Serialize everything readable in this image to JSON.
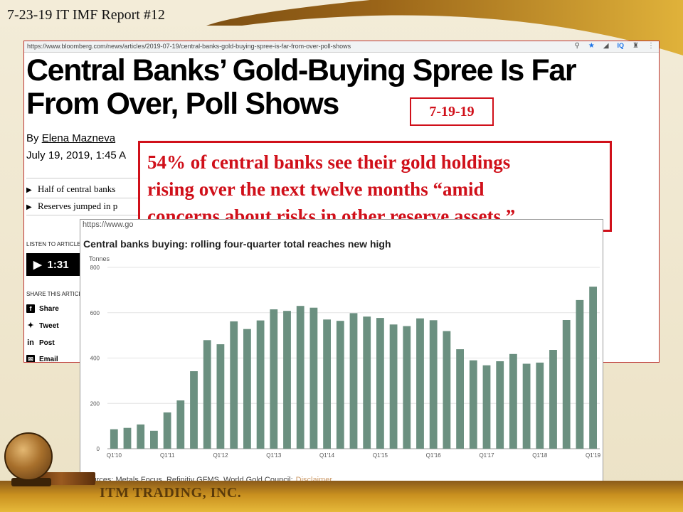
{
  "slide": {
    "title": "7-23-19 IT IMF Report #12",
    "footer_brand": "ITM TRADING, INC."
  },
  "article": {
    "url": "https://www.bloomberg.com/news/articles/2019-07-19/central-banks-gold-buying-spree-is-far-from-over-poll-shows",
    "headline_line1": "Central Banks’ Gold-Buying Spree Is Far",
    "headline_line2": "From Over, Poll Shows",
    "byline_prefix": "By",
    "author": "Elena Mazneva",
    "date": "July 19, 2019, 1:45 A",
    "bullets": [
      "Half of central banks",
      "Reserves jumped in p"
    ],
    "listen_label": "LISTEN TO ARTICLE",
    "audio_duration": "1:31",
    "share_label": "SHARE THIS ARTICLE",
    "share_items": [
      {
        "label": "Share",
        "icon": "facebook-icon"
      },
      {
        "label": "Tweet",
        "icon": "twitter-icon"
      },
      {
        "label": "Post",
        "icon": "linkedin-icon"
      },
      {
        "label": "Email",
        "icon": "email-icon"
      }
    ]
  },
  "date_badge": "7-19-19",
  "callout": {
    "line1": "54% of central banks see their gold holdings",
    "line2": "rising over the next twelve months “amid",
    "line3": "concerns about risks in other reserve assets.”"
  },
  "chart_screenshot": {
    "url": "https://www.go"
  },
  "chart_data": {
    "type": "bar",
    "title": "Central banks buying: rolling four-quarter total reaches new high",
    "ylabel": "Tonnes",
    "ylim": [
      0,
      800
    ],
    "yticks": [
      0,
      200,
      400,
      600,
      800
    ],
    "xtick_labels": [
      "Q1'10",
      "Q1'11",
      "Q1'12",
      "Q1'13",
      "Q1'14",
      "Q1'15",
      "Q1'16",
      "Q1'17",
      "Q1'18",
      "Q1'19"
    ],
    "bar_color": "#6b9080",
    "categories": [
      "Q1'10",
      "Q2'10",
      "Q3'10",
      "Q4'10",
      "Q1'11",
      "Q2'11",
      "Q3'11",
      "Q4'11",
      "Q1'12",
      "Q2'12",
      "Q3'12",
      "Q4'12",
      "Q1'13",
      "Q2'13",
      "Q3'13",
      "Q4'13",
      "Q1'14",
      "Q2'14",
      "Q3'14",
      "Q4'14",
      "Q1'15",
      "Q2'15",
      "Q3'15",
      "Q4'15",
      "Q1'16",
      "Q2'16",
      "Q3'16",
      "Q4'16",
      "Q1'17",
      "Q2'17",
      "Q3'17",
      "Q4'17",
      "Q1'18",
      "Q2'18",
      "Q3'18",
      "Q4'18",
      "Q1'19"
    ],
    "values": [
      86,
      92,
      107,
      79,
      160,
      213,
      342,
      479,
      461,
      562,
      528,
      566,
      615,
      608,
      630,
      622,
      570,
      564,
      598,
      583,
      577,
      548,
      541,
      575,
      567,
      519,
      439,
      390,
      368,
      386,
      418,
      375,
      380,
      436,
      568,
      656,
      715
    ],
    "source_text": "Sources: Metals Focus, Refinitiv GFMS, World Gold Council;",
    "disclaimer_link": "Disclaimer"
  }
}
